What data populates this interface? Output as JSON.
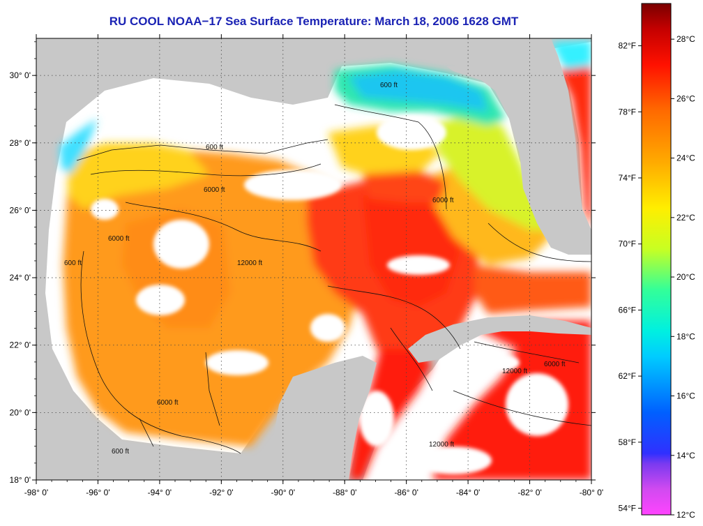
{
  "title": "RU COOL  NOAA−17  Sea Surface Temperature:  March 18, 2006 1628 GMT",
  "axes": {
    "lon_ticks": [
      "-98° 0'",
      "-96° 0'",
      "-94° 0'",
      "-92° 0'",
      "-90° 0'",
      "-88° 0'",
      "-86° 0'",
      "-84° 0'",
      "-82° 0'",
      "-80° 0'"
    ],
    "lon_values": [
      -98,
      -96,
      -94,
      -92,
      -90,
      -88,
      -86,
      -84,
      -82,
      -80
    ],
    "lat_ticks": [
      "18° 0'",
      "20° 0'",
      "22° 0'",
      "24° 0'",
      "26° 0'",
      "28° 0'",
      "30° 0'"
    ],
    "lat_values": [
      18,
      20,
      22,
      24,
      26,
      28,
      30
    ],
    "lon_range": [
      -98,
      -80
    ],
    "lat_range": [
      18,
      31.1
    ]
  },
  "colorbar": {
    "celsius_labels": [
      "12°C",
      "14°C",
      "16°C",
      "18°C",
      "20°C",
      "22°C",
      "24°C",
      "26°C",
      "28°C"
    ],
    "celsius_values": [
      12,
      14,
      16,
      18,
      20,
      22,
      24,
      26,
      28
    ],
    "fahrenheit_labels": [
      "54°F",
      "58°F",
      "62°F",
      "66°F",
      "70°F",
      "74°F",
      "78°F",
      "82°F"
    ],
    "fahrenheit_values": [
      54,
      58,
      62,
      66,
      70,
      74,
      78,
      82
    ],
    "range_c": [
      12,
      29.2
    ],
    "stops": [
      {
        "t": 0.0,
        "color": "#ff44ff"
      },
      {
        "t": 0.05,
        "color": "#d14af0"
      },
      {
        "t": 0.1,
        "color": "#7a3af0"
      },
      {
        "t": 0.12,
        "color": "#3030ff"
      },
      {
        "t": 0.2,
        "color": "#0060ff"
      },
      {
        "t": 0.31,
        "color": "#00ccff"
      },
      {
        "t": 0.36,
        "color": "#00f0e0"
      },
      {
        "t": 0.44,
        "color": "#33ff99"
      },
      {
        "t": 0.52,
        "color": "#c8ff22"
      },
      {
        "t": 0.6,
        "color": "#ffee00"
      },
      {
        "t": 0.69,
        "color": "#ffaa00"
      },
      {
        "t": 0.79,
        "color": "#ff6a00"
      },
      {
        "t": 0.88,
        "color": "#ff1100"
      },
      {
        "t": 0.95,
        "color": "#c40000"
      },
      {
        "t": 1.0,
        "color": "#7a0000"
      }
    ]
  },
  "contour_labels": [
    "600 ft",
    "6000 ft",
    "12000 ft"
  ],
  "colors": {
    "land": "#c8c8c8",
    "cloud": "#ffffff",
    "title": "#1a22b4",
    "grid": "#444444"
  }
}
